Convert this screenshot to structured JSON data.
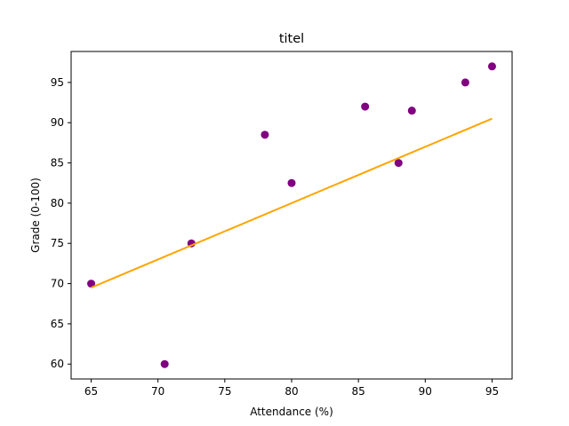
{
  "chart_data": {
    "type": "scatter",
    "title": "titel",
    "xlabel": "Attendance (%)",
    "ylabel": "Grade (0-100)",
    "xlim": [
      63.5,
      96.5
    ],
    "ylim": [
      58.15,
      98.85
    ],
    "xticks": [
      65,
      70,
      75,
      80,
      85,
      90,
      95
    ],
    "yticks": [
      60,
      65,
      70,
      75,
      80,
      85,
      90,
      95
    ],
    "grid": false,
    "legend": null,
    "series": [
      {
        "type": "scatter",
        "color": "#800080",
        "points": [
          {
            "x": 65,
            "y": 70
          },
          {
            "x": 70.5,
            "y": 60
          },
          {
            "x": 72.5,
            "y": 75
          },
          {
            "x": 78,
            "y": 88.5
          },
          {
            "x": 80,
            "y": 82.5
          },
          {
            "x": 85.5,
            "y": 92
          },
          {
            "x": 88,
            "y": 85
          },
          {
            "x": 89,
            "y": 91.5
          },
          {
            "x": 93,
            "y": 95
          },
          {
            "x": 95,
            "y": 97
          }
        ]
      },
      {
        "type": "line",
        "color": "#ffa500",
        "points": [
          {
            "x": 65,
            "y": 69.5
          },
          {
            "x": 95,
            "y": 90.5
          }
        ]
      }
    ]
  }
}
